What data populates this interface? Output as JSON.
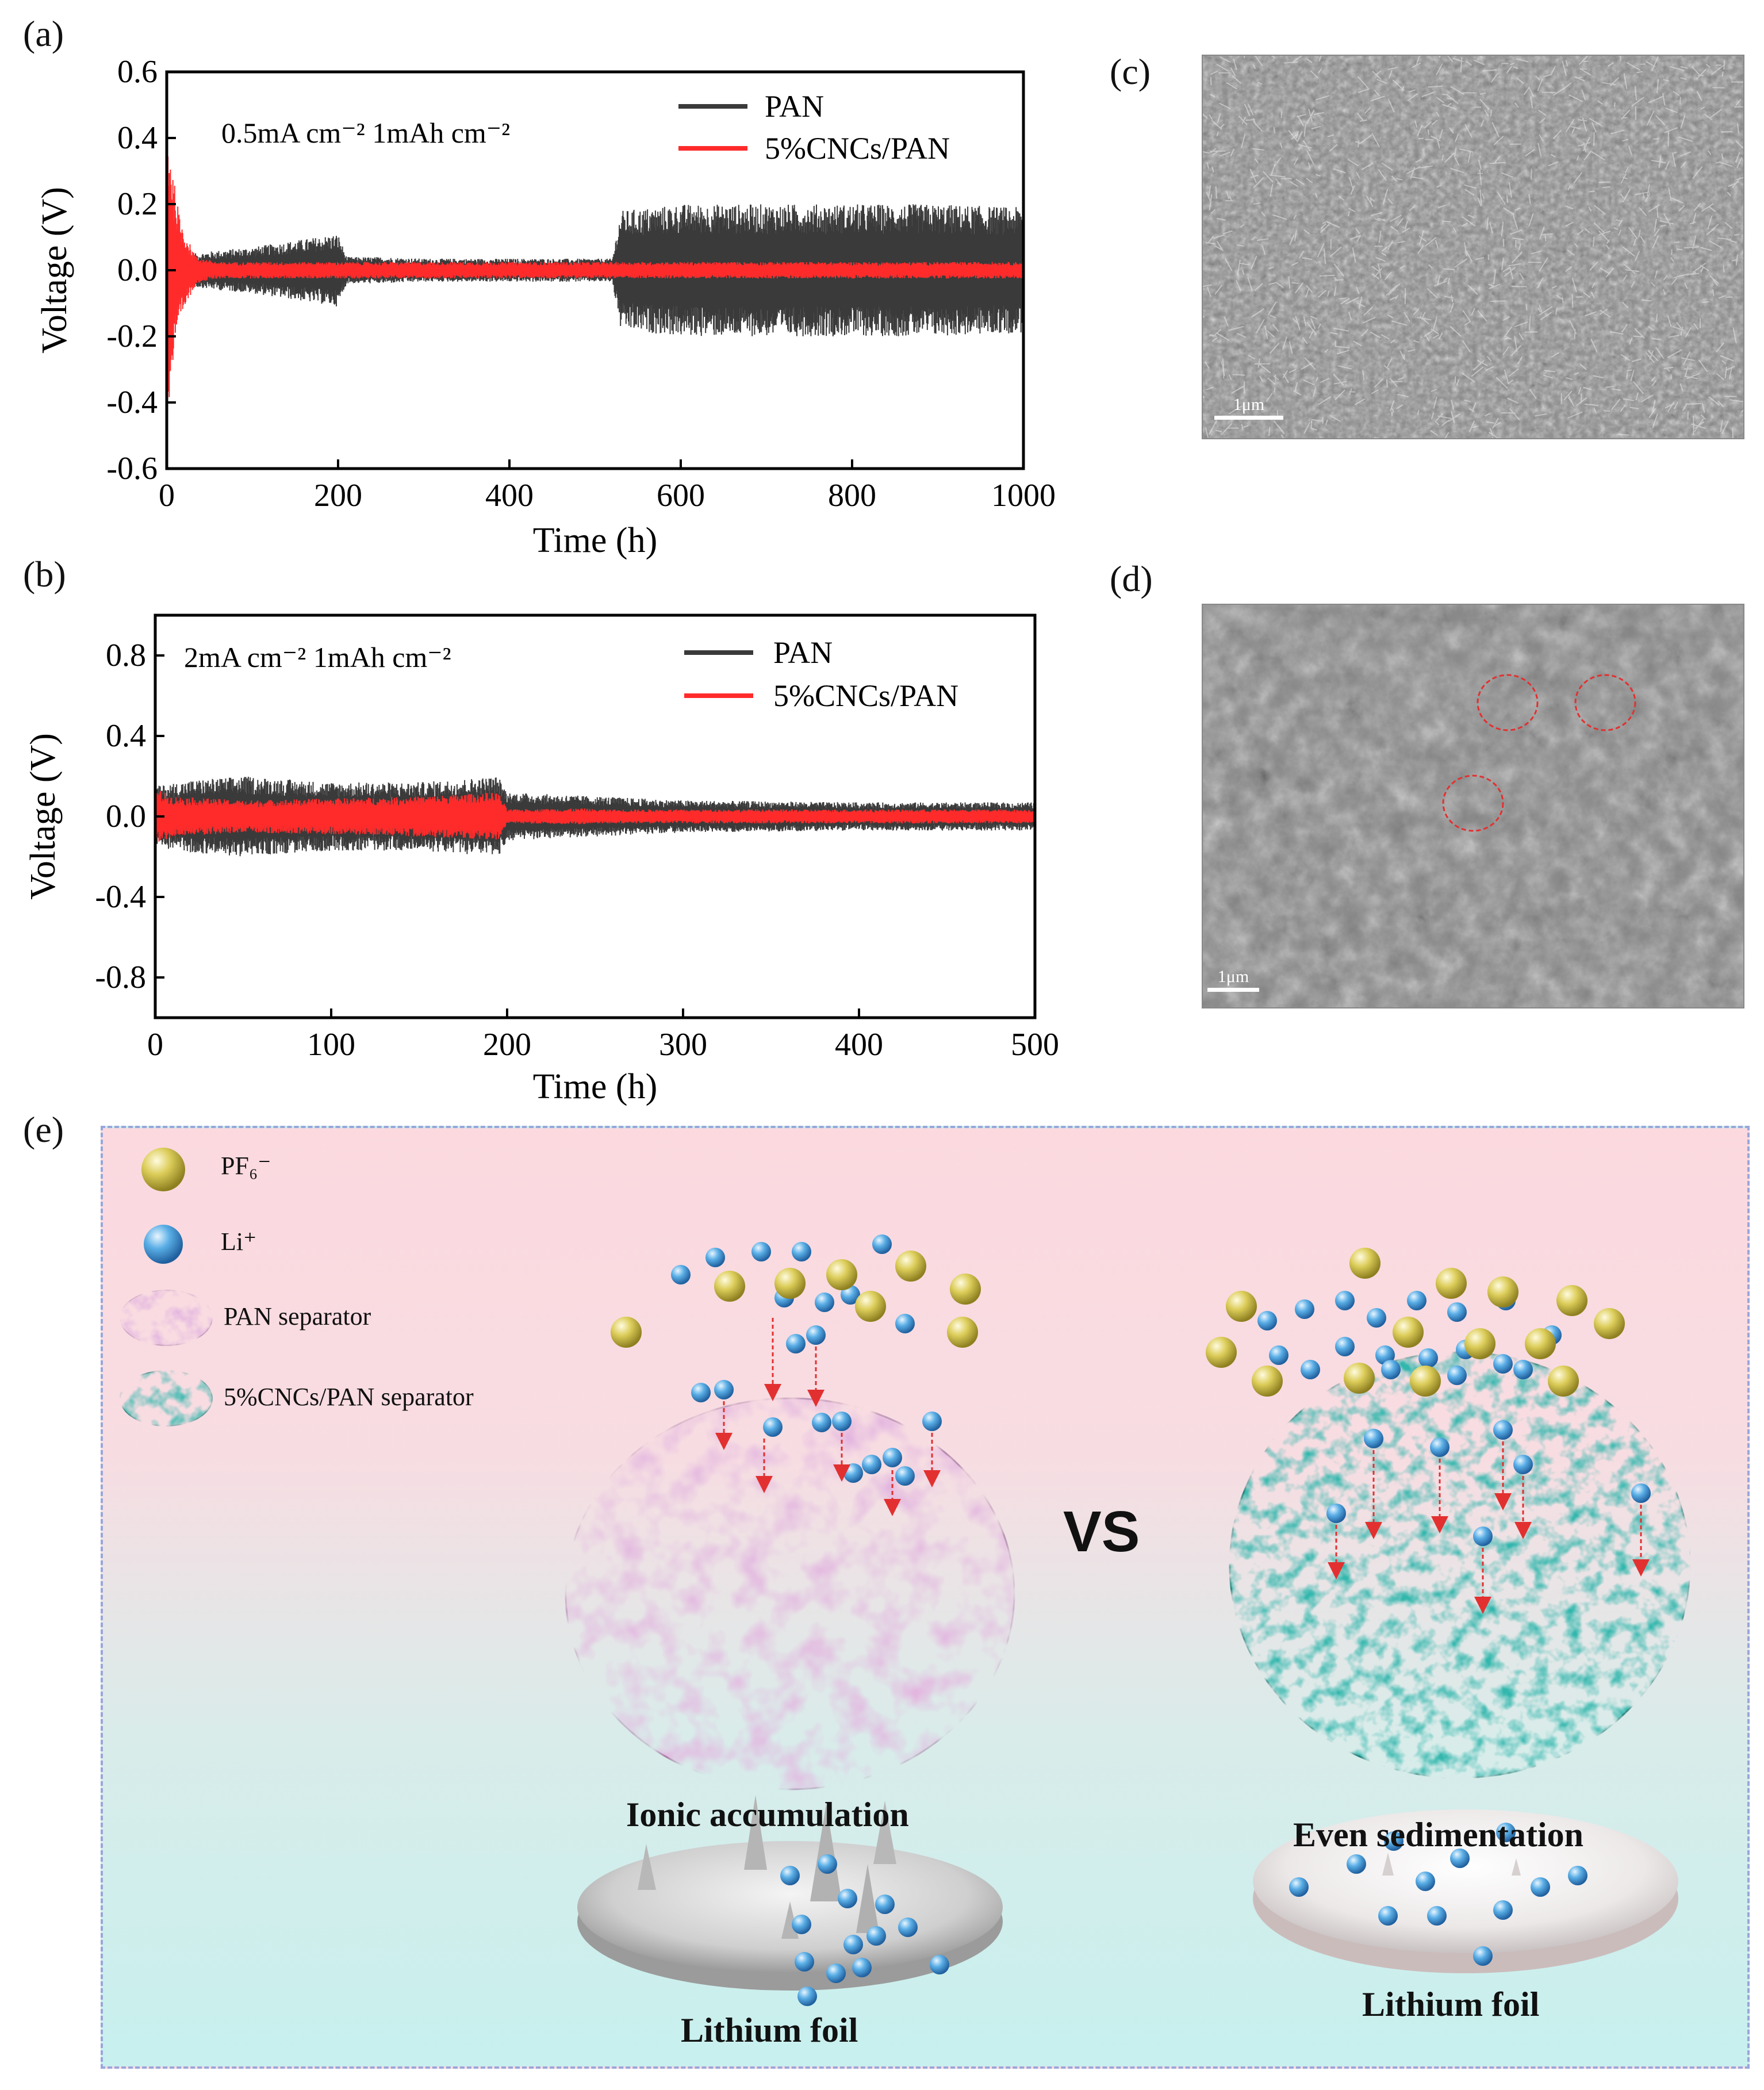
{
  "panels": {
    "a_label": "(a)",
    "b_label": "(b)",
    "c_label": "(c)",
    "d_label": "(d)",
    "e_label": "(e)"
  },
  "colors": {
    "pan_series": "#3a3a3a",
    "cncs_series": "#ff2b2b",
    "teal_separator": "#33b7ad",
    "pink_separator": "#e3b6e0",
    "li_ion": "#3d8ed4",
    "pf6_ion": "#d4c34a",
    "sem_annotation": "#e23030"
  },
  "chart_data": [
    {
      "type": "line",
      "panel": "(a)",
      "title": "",
      "annotation": "0.5mA cm⁻²  1mAh cm⁻²",
      "xlabel": "Time (h)",
      "ylabel": "Voltage (V)",
      "xlim": [
        0,
        1000
      ],
      "ylim": [
        -0.6,
        0.6
      ],
      "xticks": [
        "0",
        "200",
        "400",
        "600",
        "800",
        "1000"
      ],
      "yticks": [
        "-0.6",
        "-0.4",
        "-0.2",
        "0.0",
        "0.2",
        "0.4",
        "0.6"
      ],
      "legend_position": "top-right",
      "series": [
        {
          "name": "PAN",
          "color": "#3a3a3a",
          "envelope": {
            "x": [
              0,
              30,
              60,
              100,
              150,
              200,
              210,
              250,
              300,
              400,
              520,
              530,
              600,
              700,
              800,
              900,
              1000
            ],
            "amp": [
              0.05,
              0.05,
              0.06,
              0.07,
              0.09,
              0.11,
              0.04,
              0.04,
              0.035,
              0.035,
              0.035,
              0.18,
              0.2,
              0.2,
              0.2,
              0.2,
              0.19
            ]
          }
        },
        {
          "name": "5%CNCs/PAN",
          "color": "#ff2b2b",
          "envelope": {
            "x": [
              0,
              3,
              8,
              15,
              25,
              35,
              60,
              200,
              400,
              600,
              800,
              1000
            ],
            "amp": [
              0.45,
              0.4,
              0.28,
              0.16,
              0.09,
              0.04,
              0.025,
              0.025,
              0.025,
              0.025,
              0.025,
              0.025
            ]
          }
        }
      ]
    },
    {
      "type": "line",
      "panel": "(b)",
      "title": "",
      "annotation": "2mA cm⁻²  1mAh cm⁻²",
      "xlabel": "Time (h)",
      "ylabel": "Voltage (V)",
      "xlim": [
        0,
        500
      ],
      "ylim": [
        -1.0,
        1.0
      ],
      "xticks": [
        "0",
        "100",
        "200",
        "300",
        "400",
        "500"
      ],
      "yticks": [
        "-0.8",
        "-0.4",
        "0.0",
        "0.4",
        "0.8"
      ],
      "legend_position": "top-right",
      "series": [
        {
          "name": "PAN",
          "color": "#3a3a3a",
          "envelope": {
            "x": [
              0,
              20,
              50,
              100,
              150,
              195,
              200,
              250,
              300,
              400,
              500
            ],
            "amp": [
              0.15,
              0.18,
              0.2,
              0.17,
              0.17,
              0.2,
              0.12,
              0.1,
              0.08,
              0.07,
              0.07
            ]
          }
        },
        {
          "name": "5%CNCs/PAN",
          "color": "#ff2b2b",
          "envelope": {
            "x": [
              0,
              10,
              50,
              100,
              150,
              195,
              200,
              245,
              250,
              300,
              400,
              500
            ],
            "amp": [
              0.14,
              0.1,
              0.08,
              0.09,
              0.1,
              0.12,
              0.035,
              0.04,
              0.035,
              0.035,
              0.035,
              0.035
            ]
          }
        }
      ]
    }
  ],
  "sem": {
    "c_scale": "1μm",
    "d_scale": "1μm"
  },
  "schematic": {
    "legend": {
      "pf6_label": "PF₆⁻",
      "li_label": "Li⁺",
      "pan_sep_label": "PAN separator",
      "cncs_sep_label": "5%CNCs/PAN separator"
    },
    "vs": "VS",
    "left_caption": "Ionic accumulation",
    "right_caption": "Even sedimentation",
    "left_foil": "Lithium foil",
    "right_foil": "Lithium foil"
  }
}
